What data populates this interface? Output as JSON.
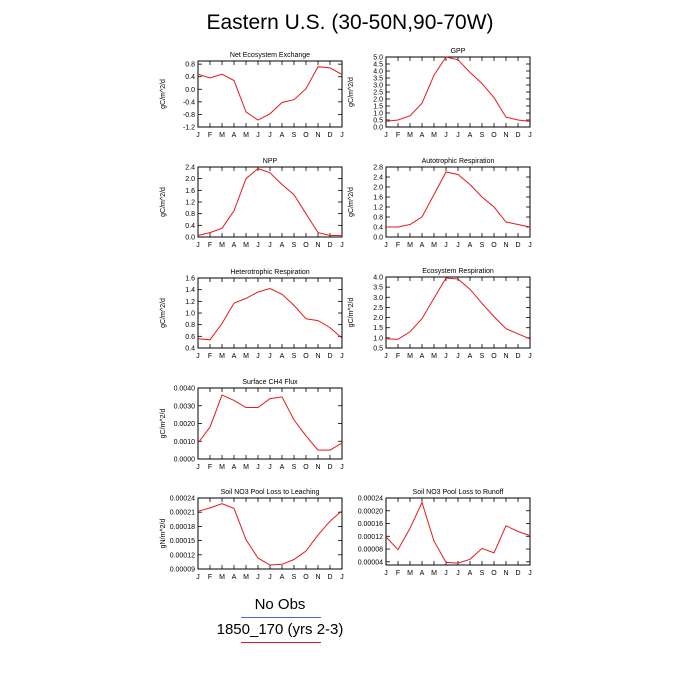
{
  "page_title": "Eastern U.S. (30-50N,90-70W)",
  "months": [
    "J",
    "F",
    "M",
    "A",
    "M",
    "J",
    "J",
    "A",
    "S",
    "O",
    "N",
    "D",
    "J"
  ],
  "colors": {
    "model_line": "#e41a1c",
    "obs_line": "#3b6fd6",
    "axis": "#000000"
  },
  "legend": {
    "entries": [
      {
        "label": "No Obs",
        "color": "#3b6fd6"
      },
      {
        "label": "1850_170 (yrs 2-3)",
        "color": "#e41a1c"
      }
    ]
  },
  "chart_data": [
    {
      "type": "line",
      "title": "Net Ecosystem Exchange",
      "ylabel": "gC/m^2/d",
      "ylim": [
        -1.2,
        0.9
      ],
      "yticks": [
        "0.8",
        "0.4",
        "0.0",
        "-0.4",
        "-0.8",
        "-1.2"
      ],
      "ytick_values": [
        0.8,
        0.4,
        0.0,
        -0.4,
        -0.8,
        -1.2
      ],
      "values": [
        0.48,
        0.36,
        0.48,
        0.28,
        -0.72,
        -0.98,
        -0.78,
        -0.42,
        -0.33,
        0.02,
        0.72,
        0.68,
        0.47
      ]
    },
    {
      "type": "line",
      "title": "GPP",
      "ylabel": "gC/m^2/d",
      "ylim": [
        0.0,
        5.0
      ],
      "yticks": [
        "5.0",
        "4.5",
        "4.0",
        "3.5",
        "3.0",
        "2.5",
        "2.0",
        "1.5",
        "1.0",
        "0.5",
        "0.0"
      ],
      "ytick_values": [
        5.0,
        4.5,
        4.0,
        3.5,
        3.0,
        2.5,
        2.0,
        1.5,
        1.0,
        0.5,
        0.0
      ],
      "values": [
        0.4,
        0.5,
        0.8,
        1.7,
        3.7,
        5.0,
        4.8,
        3.9,
        3.1,
        2.1,
        0.7,
        0.5,
        0.4
      ]
    },
    {
      "type": "line",
      "title": "NPP",
      "ylabel": "gC/m^2/d",
      "ylim": [
        0.0,
        2.4
      ],
      "yticks": [
        "2.4",
        "2.0",
        "1.6",
        "1.2",
        "0.8",
        "0.4",
        "0.0"
      ],
      "ytick_values": [
        2.4,
        2.0,
        1.6,
        1.2,
        0.8,
        0.4,
        0.0
      ],
      "values": [
        0.05,
        0.15,
        0.3,
        0.9,
        2.0,
        2.35,
        2.2,
        1.8,
        1.45,
        0.8,
        0.15,
        0.05,
        0.05
      ]
    },
    {
      "type": "line",
      "title": "Autotrophic Respiration",
      "ylabel": "gC/m^2/d",
      "ylim": [
        0.0,
        2.8
      ],
      "yticks": [
        "2.8",
        "2.4",
        "2.0",
        "1.6",
        "1.2",
        "0.8",
        "0.4",
        "0.0"
      ],
      "ytick_values": [
        2.8,
        2.4,
        2.0,
        1.6,
        1.2,
        0.8,
        0.4,
        0.0
      ],
      "values": [
        0.4,
        0.4,
        0.5,
        0.8,
        1.7,
        2.6,
        2.5,
        2.1,
        1.6,
        1.2,
        0.6,
        0.5,
        0.4
      ]
    },
    {
      "type": "line",
      "title": "Heterotrophic Respiration",
      "ylabel": "gC/m^2/d",
      "ylim": [
        0.4,
        1.6
      ],
      "yticks": [
        "1.6",
        "1.4",
        "1.2",
        "1.0",
        "0.8",
        "0.6",
        "0.4"
      ],
      "ytick_values": [
        1.6,
        1.4,
        1.2,
        1.0,
        0.8,
        0.6,
        0.4
      ],
      "values": [
        0.56,
        0.54,
        0.82,
        1.17,
        1.25,
        1.36,
        1.42,
        1.32,
        1.13,
        0.9,
        0.87,
        0.75,
        0.57
      ]
    },
    {
      "type": "line",
      "title": "Ecosystem Respiration",
      "ylabel": "gC/m^2/d",
      "ylim": [
        0.5,
        4.0
      ],
      "yticks": [
        "4.0",
        "3.5",
        "3.0",
        "2.5",
        "2.0",
        "1.5",
        "1.0",
        "0.5"
      ],
      "ytick_values": [
        4.0,
        3.5,
        3.0,
        2.5,
        2.0,
        1.5,
        1.0,
        0.5
      ],
      "values": [
        0.95,
        0.93,
        1.3,
        1.95,
        2.95,
        3.95,
        3.9,
        3.4,
        2.7,
        2.05,
        1.45,
        1.2,
        0.95
      ]
    },
    {
      "type": "line",
      "title": "Surface CH4 Flux",
      "ylabel": "gC/m^2/d",
      "ylim": [
        0.0,
        0.004
      ],
      "yticks": [
        "0.0040",
        "0.0030",
        "0.0020",
        "0.0010",
        "0.0000"
      ],
      "ytick_values": [
        0.004,
        0.003,
        0.002,
        0.001,
        0.0
      ],
      "values": [
        0.0009,
        0.0018,
        0.0036,
        0.0033,
        0.0029,
        0.0029,
        0.0034,
        0.0035,
        0.0022,
        0.0013,
        0.0005,
        0.0005,
        0.0009
      ]
    },
    {
      "type": "line",
      "title": "Soil NO3 Pool Loss to Leaching",
      "ylabel": "gN/m^2/d",
      "ylim": [
        9e-05,
        0.00024
      ],
      "yticks": [
        "0.00024",
        "0.00021",
        "0.00018",
        "0.00015",
        "0.00012",
        "0.00009"
      ],
      "ytick_values": [
        0.00024,
        0.00021,
        0.00018,
        0.00015,
        0.00012,
        9e-05
      ],
      "values": [
        0.000212,
        0.000219,
        0.000228,
        0.000218,
        0.000152,
        0.000113,
        9.85e-05,
        0.0001,
        0.00011,
        0.000128,
        0.000162,
        0.000191,
        0.000213
      ]
    },
    {
      "type": "line",
      "title": "Soil NO3 Pool Loss to Runoff",
      "ylabel": "",
      "ylim": [
        3e-05,
        0.00024
      ],
      "yticks": [
        "0.00024",
        "0.00020",
        "0.00016",
        "0.00012",
        "0.00008",
        "0.00004"
      ],
      "ytick_values": [
        0.00024,
        0.0002,
        0.00016,
        0.00012,
        8e-05,
        4e-05
      ],
      "values": [
        0.000118,
        7.8e-05,
        0.000145,
        0.000226,
        0.000105,
        3.8e-05,
        3.6e-05,
        4.8e-05,
        8.2e-05,
        6.8e-05,
        0.000153,
        0.000135,
        0.000122
      ]
    }
  ]
}
